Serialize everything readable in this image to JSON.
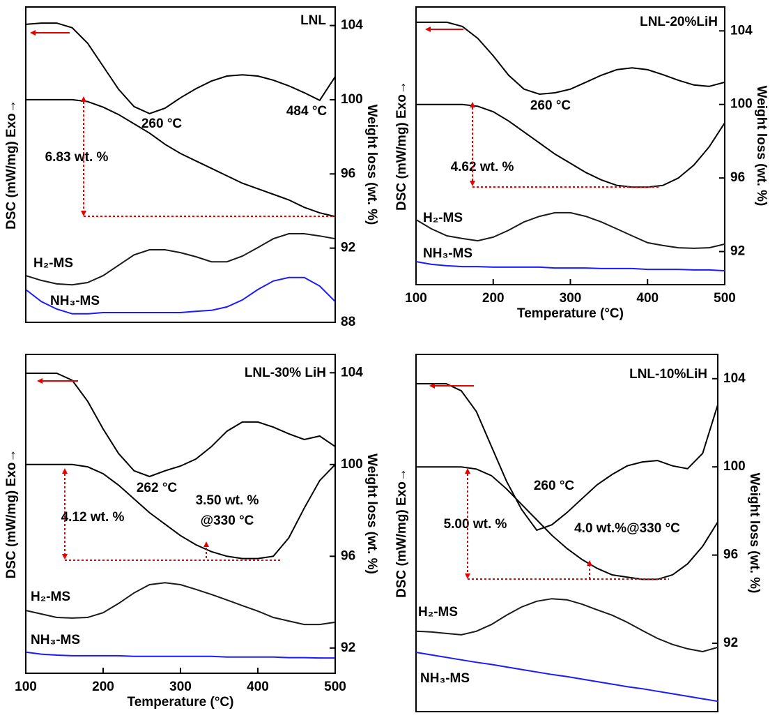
{
  "chart_data": [
    {
      "type": "line",
      "title": "LNL",
      "ylabel": "DSC (mW/mg) Exo→",
      "y2label": "Weight loss (wt. %)",
      "x": [
        100,
        120,
        140,
        160,
        180,
        200,
        220,
        240,
        260,
        280,
        300,
        320,
        340,
        360,
        380,
        400,
        420,
        440,
        460,
        480,
        500
      ],
      "xlim": [
        100,
        500
      ],
      "ylim": [
        0,
        100
      ],
      "y2lim": [
        88,
        105
      ],
      "y2ticks": [
        104,
        100,
        96,
        92,
        88
      ],
      "series": [
        {
          "color": "#000000",
          "values": [
            94.5,
            94.9,
            94.9,
            93.4,
            88.5,
            81.2,
            73.9,
            68.4,
            66.2,
            67.9,
            71.2,
            74.1,
            76.5,
            78.1,
            78.5,
            78.1,
            76.8,
            75.0,
            72.8,
            70.4,
            77.9
          ]
        },
        {
          "color": "#000000",
          "axis": "y2",
          "values": [
            100,
            100,
            100,
            100,
            99.9,
            99.6,
            99.2,
            98.7,
            98.2,
            97.6,
            97.1,
            96.7,
            96.3,
            95.9,
            95.5,
            95.2,
            94.9,
            94.6,
            94.2,
            93.9,
            93.7
          ]
        },
        {
          "name": "H₂-MS",
          "color": "#1a1a1a",
          "values": [
            14.8,
            13.3,
            12.2,
            11.9,
            12.6,
            14.8,
            18.1,
            21.4,
            23.0,
            23.0,
            22.1,
            20.8,
            19.2,
            19.2,
            21.0,
            23.7,
            26.5,
            28.1,
            28.1,
            27.4,
            26.5
          ]
        },
        {
          "name": "NH₃-MS",
          "color": "#1a1aff",
          "values": [
            10.4,
            6.6,
            4.2,
            2.7,
            2.7,
            3.1,
            3.1,
            3.1,
            3.1,
            3.1,
            3.1,
            3.5,
            3.8,
            4.9,
            7.1,
            10.4,
            13.1,
            14.2,
            14.2,
            11.5,
            6.6
          ]
        }
      ],
      "annotations": [
        "260 °C",
        "484 °C",
        "6.83 wt. %"
      ]
    },
    {
      "type": "line",
      "title": "LNL-20%LiH",
      "ylabel": "DSC (mW/mg) Exo→",
      "y2label": "Weight loss (wt. %)",
      "xlabel": "Temperature (°C)",
      "x": [
        100,
        120,
        140,
        160,
        180,
        200,
        220,
        240,
        260,
        280,
        300,
        320,
        340,
        360,
        380,
        400,
        420,
        440,
        460,
        480,
        500
      ],
      "xlim": [
        100,
        500
      ],
      "xticks": [
        100,
        200,
        300,
        400,
        500
      ],
      "ylim": [
        0,
        100
      ],
      "y2lim": [
        90.2,
        105.3
      ],
      "y2ticks": [
        104,
        100,
        96,
        92
      ],
      "series": [
        {
          "color": "#000000",
          "values": [
            94.5,
            94.5,
            94.5,
            93.0,
            88.7,
            82.4,
            75.4,
            70.4,
            68.6,
            69.1,
            70.4,
            72.9,
            75.4,
            77.4,
            78.1,
            77.4,
            75.6,
            73.6,
            71.9,
            71.4,
            72.9
          ]
        },
        {
          "color": "#000000",
          "axis": "y2",
          "values": [
            100,
            100,
            100,
            100,
            99.9,
            99.6,
            99.1,
            98.5,
            97.9,
            97.3,
            96.8,
            96.3,
            95.9,
            95.6,
            95.5,
            95.5,
            95.6,
            96.0,
            96.7,
            97.7,
            99.0
          ]
        },
        {
          "name": "H₂-MS",
          "color": "#1a1a1a",
          "values": [
            23.4,
            20.1,
            17.6,
            16.6,
            15.8,
            17.1,
            19.6,
            22.6,
            24.6,
            25.9,
            25.9,
            24.6,
            22.6,
            20.1,
            17.6,
            15.1,
            14.1,
            13.3,
            13.1,
            13.3,
            14.6
          ]
        },
        {
          "name": "NH₃-MS",
          "color": "#1a1aff",
          "values": [
            8.3,
            7.3,
            6.8,
            6.5,
            6.5,
            6.3,
            6.3,
            6.3,
            6.3,
            6.0,
            6.0,
            6.0,
            5.8,
            5.8,
            5.8,
            5.5,
            5.5,
            5.5,
            5.3,
            5.3,
            5.0
          ]
        }
      ],
      "annotations": [
        "260 °C",
        "4.62 wt. %"
      ]
    },
    {
      "type": "line",
      "title": "LNL-30% LiH",
      "ylabel": "DSC (mW/mg) Exo→",
      "y2label": "Weight loss (wt. %)",
      "xlabel": "Temperature (°C)",
      "x": [
        100,
        120,
        140,
        160,
        180,
        200,
        220,
        240,
        260,
        280,
        300,
        320,
        340,
        360,
        380,
        400,
        420,
        440,
        460,
        480,
        500
      ],
      "xlim": [
        100,
        500
      ],
      "xticks": [
        100,
        200,
        300,
        400,
        500
      ],
      "ylim": [
        0,
        100
      ],
      "y2lim": [
        90.9,
        104.8
      ],
      "y2ticks": [
        104,
        100,
        96,
        92
      ],
      "series": [
        {
          "color": "#000000",
          "values": [
            94.1,
            94.1,
            94.1,
            91.9,
            85.3,
            76.6,
            68.9,
            63.5,
            61.7,
            63.5,
            65.0,
            67.2,
            71.1,
            75.9,
            78.8,
            78.8,
            77.2,
            75.1,
            73.3,
            74.4,
            71.1
          ]
        },
        {
          "color": "#000000",
          "axis": "y2",
          "values": [
            100,
            100,
            100,
            100,
            99.9,
            99.6,
            99.1,
            98.5,
            97.9,
            97.4,
            96.9,
            96.5,
            96.2,
            96.0,
            95.9,
            95.9,
            96.0,
            96.8,
            98.1,
            99.3,
            100.0
          ]
        },
        {
          "name": "H₂-MS",
          "color": "#1a1a1a",
          "values": [
            19.7,
            18.6,
            17.5,
            17.3,
            17.5,
            19.0,
            21.9,
            25.2,
            27.8,
            28.4,
            27.8,
            26.3,
            24.7,
            23.0,
            21.2,
            19.5,
            17.5,
            16.4,
            15.3,
            15.3,
            16.0
          ]
        },
        {
          "name": "NH₃-MS",
          "color": "#1a1aff",
          "values": [
            6.6,
            6.0,
            5.7,
            5.5,
            5.5,
            5.5,
            5.5,
            5.3,
            5.3,
            5.3,
            5.3,
            5.3,
            5.3,
            5.1,
            5.1,
            5.1,
            5.1,
            4.9,
            4.9,
            4.8,
            4.8
          ]
        }
      ],
      "annotations": [
        "262 °C",
        "4.12 wt. %",
        "3.50 wt. %",
        "@330 °C"
      ]
    },
    {
      "type": "line",
      "title": "LNL-10%LiH",
      "ylabel": "DSC (mW/mg) Exo→",
      "y2label": "Weight loss (wt. %)",
      "x": [
        100,
        120,
        140,
        160,
        180,
        200,
        220,
        240,
        260,
        280,
        300,
        320,
        340,
        360,
        380,
        400,
        420,
        440,
        460,
        480,
        500
      ],
      "xlim": [
        100,
        500
      ],
      "ylim": [
        0,
        100
      ],
      "y2lim": [
        88.9,
        105.1
      ],
      "y2ticks": [
        104,
        100,
        96,
        92
      ],
      "series": [
        {
          "color": "#000000",
          "values": [
            91.8,
            91.8,
            91.8,
            89.8,
            84.0,
            74.2,
            64.5,
            56.6,
            50.8,
            52.3,
            55.7,
            59.6,
            63.5,
            66.4,
            68.8,
            69.9,
            70.3,
            68.8,
            68.0,
            72.3,
            85.9
          ]
        },
        {
          "color": "#000000",
          "axis": "y2",
          "values": [
            100,
            100,
            100,
            100,
            99.9,
            99.6,
            99.0,
            98.3,
            97.6,
            96.9,
            96.3,
            95.8,
            95.4,
            95.1,
            95.0,
            94.9,
            94.9,
            95.1,
            95.6,
            96.4,
            97.5
          ]
        },
        {
          "name": "H₂-MS",
          "color": "#1a1a1a",
          "values": [
            22.5,
            22.3,
            21.9,
            21.5,
            22.5,
            24.4,
            27.0,
            29.3,
            30.9,
            31.6,
            31.3,
            30.1,
            28.5,
            27.0,
            25.0,
            22.7,
            20.5,
            18.8,
            17.6,
            16.8,
            18.0
          ]
        },
        {
          "name": "NH₃-MS",
          "color": "#1a1aff",
          "values": [
            16.6,
            15.9,
            15.2,
            14.5,
            13.8,
            13.2,
            12.5,
            11.8,
            11.1,
            10.4,
            9.8,
            9.1,
            8.4,
            7.7,
            7.0,
            6.4,
            5.7,
            5.0,
            4.3,
            3.6,
            2.9
          ]
        }
      ],
      "annotations": [
        "260 °C",
        "5.00 wt. %",
        "4.0 wt.%@330 °C"
      ]
    }
  ]
}
